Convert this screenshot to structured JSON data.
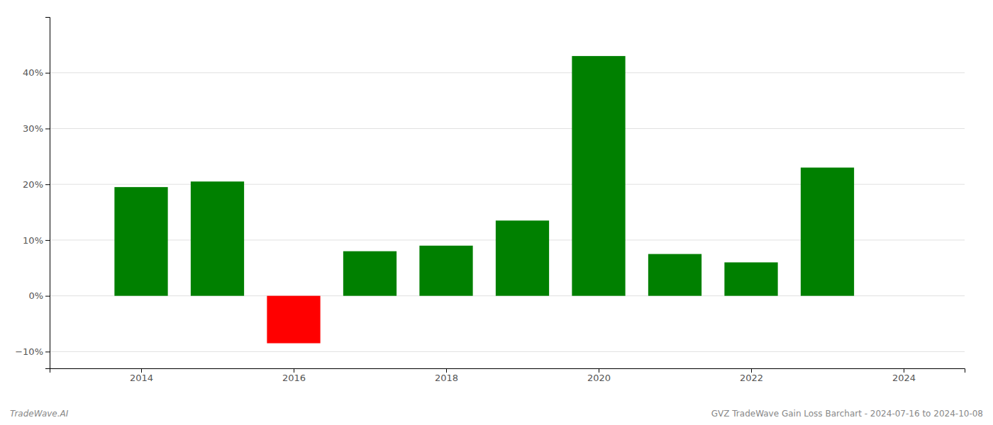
{
  "chart_data": {
    "type": "bar",
    "x": [
      2014,
      2015,
      2016,
      2017,
      2018,
      2019,
      2020,
      2021,
      2022,
      2023
    ],
    "values": [
      19.5,
      20.5,
      -8.5,
      8.0,
      9.0,
      13.5,
      43.0,
      7.5,
      6.0,
      23.0
    ],
    "colors": [
      "#008000",
      "#008000",
      "#ff0000",
      "#008000",
      "#008000",
      "#008000",
      "#008000",
      "#008000",
      "#008000",
      "#008000"
    ],
    "xlim": [
      2012.8,
      2024.8
    ],
    "xticks": [
      2014,
      2016,
      2018,
      2020,
      2022,
      2024
    ],
    "ylim": [
      -13,
      50
    ],
    "yticks": [
      {
        "value": -10,
        "label": "−10%"
      },
      {
        "value": 0,
        "label": "0%"
      },
      {
        "value": 10,
        "label": "10%"
      },
      {
        "value": 20,
        "label": "20%"
      },
      {
        "value": 30,
        "label": "30%"
      },
      {
        "value": 40,
        "label": "40%"
      }
    ],
    "grid": true,
    "annotations": [
      "TradeWave.AI",
      "GVZ TradeWave Gain Loss Barchart - 2024-07-16 to 2024-10-08"
    ]
  }
}
